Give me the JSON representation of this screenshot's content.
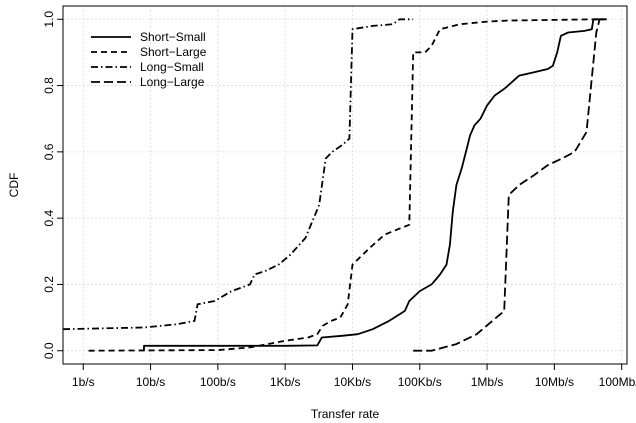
{
  "chart_data": {
    "type": "line",
    "xlabel": "Transfer rate",
    "ylabel": "CDF",
    "x_scale": "log",
    "xlim": [
      0.5,
      120000000
    ],
    "ylim": [
      0,
      1
    ],
    "grid": true,
    "legend_position": "top-left",
    "x_ticks": [
      {
        "value": 1,
        "label": "1b/s"
      },
      {
        "value": 10,
        "label": "10b/s"
      },
      {
        "value": 100,
        "label": "100b/s"
      },
      {
        "value": 1000,
        "label": "1Kb/s"
      },
      {
        "value": 10000,
        "label": "10Kb/s"
      },
      {
        "value": 100000,
        "label": "100Kb/s"
      },
      {
        "value": 1000000,
        "label": "1Mb/s"
      },
      {
        "value": 10000000,
        "label": "10Mb/s"
      },
      {
        "value": 100000000,
        "label": "100Mb/s"
      }
    ],
    "y_ticks": [
      {
        "value": 0.0,
        "label": "0.0"
      },
      {
        "value": 0.2,
        "label": "0.2"
      },
      {
        "value": 0.4,
        "label": "0.4"
      },
      {
        "value": 0.6,
        "label": "0.6"
      },
      {
        "value": 0.8,
        "label": "0.8"
      },
      {
        "value": 1.0,
        "label": "1.0"
      }
    ],
    "series": [
      {
        "name": "Short−Small",
        "dash": "solid",
        "points": [
          [
            8,
            0.0
          ],
          [
            8,
            0.015
          ],
          [
            20,
            0.015
          ],
          [
            100,
            0.015
          ],
          [
            1000,
            0.015
          ],
          [
            3000,
            0.016
          ],
          [
            3500,
            0.04
          ],
          [
            7000,
            0.045
          ],
          [
            12000,
            0.05
          ],
          [
            20000,
            0.065
          ],
          [
            35000,
            0.09
          ],
          [
            60000,
            0.12
          ],
          [
            70000,
            0.15
          ],
          [
            100000,
            0.18
          ],
          [
            150000,
            0.2
          ],
          [
            200000,
            0.23
          ],
          [
            250000,
            0.26
          ],
          [
            280000,
            0.32
          ],
          [
            310000,
            0.42
          ],
          [
            350000,
            0.5
          ],
          [
            420000,
            0.55
          ],
          [
            500000,
            0.61
          ],
          [
            560000,
            0.65
          ],
          [
            650000,
            0.68
          ],
          [
            800000,
            0.7
          ],
          [
            1000000,
            0.74
          ],
          [
            1300000,
            0.77
          ],
          [
            1800000,
            0.79
          ],
          [
            3000000,
            0.83
          ],
          [
            5000000,
            0.84
          ],
          [
            8000000,
            0.85
          ],
          [
            9500000,
            0.86
          ],
          [
            11000000,
            0.9
          ],
          [
            12500000,
            0.95
          ],
          [
            16000000,
            0.96
          ],
          [
            28000000,
            0.965
          ],
          [
            36000000,
            0.97
          ],
          [
            38000000,
            1.0
          ],
          [
            55000000,
            1.0
          ]
        ]
      },
      {
        "name": "Short−Large",
        "dash": "dashed",
        "points": [
          [
            1.2,
            0.0
          ],
          [
            100,
            0.002
          ],
          [
            300,
            0.01
          ],
          [
            1000,
            0.03
          ],
          [
            2200,
            0.04
          ],
          [
            3000,
            0.05
          ],
          [
            3600,
            0.075
          ],
          [
            4800,
            0.09
          ],
          [
            6600,
            0.1
          ],
          [
            8500,
            0.14
          ],
          [
            10000,
            0.26
          ],
          [
            18000,
            0.31
          ],
          [
            30000,
            0.35
          ],
          [
            52000,
            0.37
          ],
          [
            70000,
            0.38
          ],
          [
            80000,
            0.9
          ],
          [
            120000,
            0.9
          ],
          [
            150000,
            0.92
          ],
          [
            200000,
            0.97
          ],
          [
            400000,
            0.985
          ],
          [
            700000,
            0.99
          ],
          [
            1000000,
            0.993
          ],
          [
            2000000,
            0.996
          ],
          [
            10000000,
            0.998
          ],
          [
            40000000,
            1.0
          ],
          [
            60000000,
            1.0
          ]
        ]
      },
      {
        "name": "Long−Small",
        "dash": "dashdot",
        "points": [
          [
            0.5,
            0.065
          ],
          [
            8,
            0.07
          ],
          [
            25,
            0.08
          ],
          [
            45,
            0.09
          ],
          [
            50,
            0.14
          ],
          [
            90,
            0.15
          ],
          [
            160,
            0.18
          ],
          [
            220,
            0.19
          ],
          [
            300,
            0.2
          ],
          [
            350,
            0.23
          ],
          [
            500,
            0.24
          ],
          [
            800,
            0.26
          ],
          [
            1200,
            0.29
          ],
          [
            2000,
            0.34
          ],
          [
            3200,
            0.44
          ],
          [
            4000,
            0.58
          ],
          [
            5000,
            0.6
          ],
          [
            7000,
            0.62
          ],
          [
            9000,
            0.64
          ],
          [
            10000,
            0.97
          ],
          [
            20000,
            0.98
          ],
          [
            40000,
            0.985
          ],
          [
            50000,
            1.0
          ],
          [
            80000,
            1.0
          ]
        ]
      },
      {
        "name": "Long−Large",
        "dash": "longdash",
        "points": [
          [
            80000,
            0.0
          ],
          [
            150000,
            0.0
          ],
          [
            350000,
            0.02
          ],
          [
            700000,
            0.05
          ],
          [
            1200000,
            0.09
          ],
          [
            1800000,
            0.12
          ],
          [
            2100000,
            0.47
          ],
          [
            3000000,
            0.5
          ],
          [
            5000000,
            0.53
          ],
          [
            8000000,
            0.56
          ],
          [
            13000000,
            0.58
          ],
          [
            20000000,
            0.6
          ],
          [
            30000000,
            0.66
          ],
          [
            42000000,
            0.96
          ],
          [
            47000000,
            1.0
          ],
          [
            60000000,
            1.0
          ]
        ]
      }
    ]
  }
}
